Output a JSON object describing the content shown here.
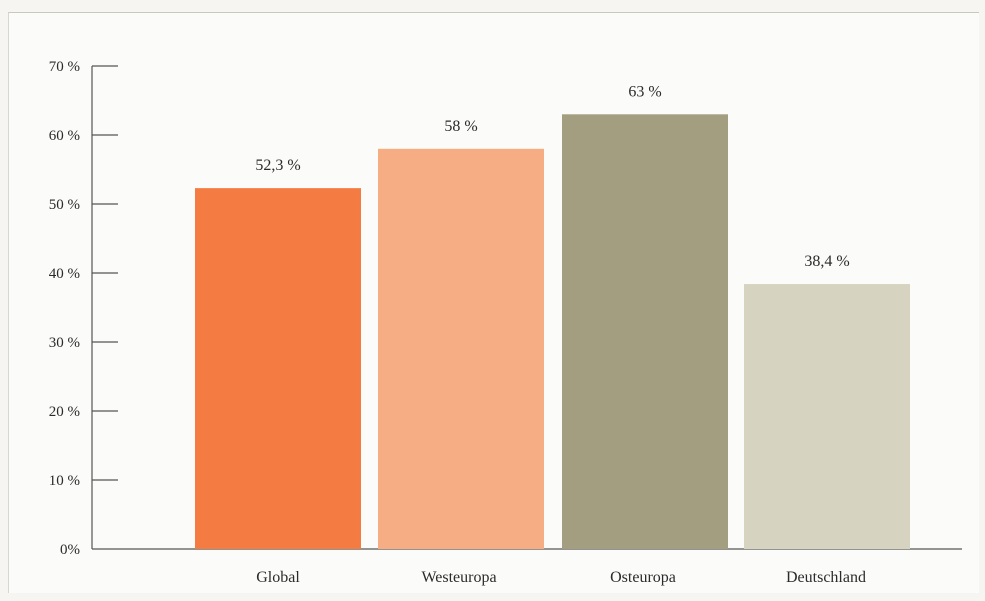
{
  "chart_data": {
    "type": "bar",
    "categories": [
      "Global",
      "Westeuropa",
      "Osteuropa",
      "Deutschland"
    ],
    "values": [
      52.3,
      58,
      63,
      38.4
    ],
    "value_labels": [
      "52,3 %",
      "58 %",
      "63 %",
      "38,4 %"
    ],
    "colors": [
      "#f47c43",
      "#f7ad84",
      "#a39e7f",
      "#d6d4c0"
    ],
    "ylim": [
      0,
      70
    ],
    "yticks": [
      0,
      10,
      20,
      30,
      40,
      50,
      60,
      70
    ],
    "ytick_labels": [
      "0%",
      "10 %",
      "20 %",
      "30 %",
      "40 %",
      "50 %",
      "60 %",
      "70 %"
    ],
    "grid": false,
    "legend": "none"
  }
}
